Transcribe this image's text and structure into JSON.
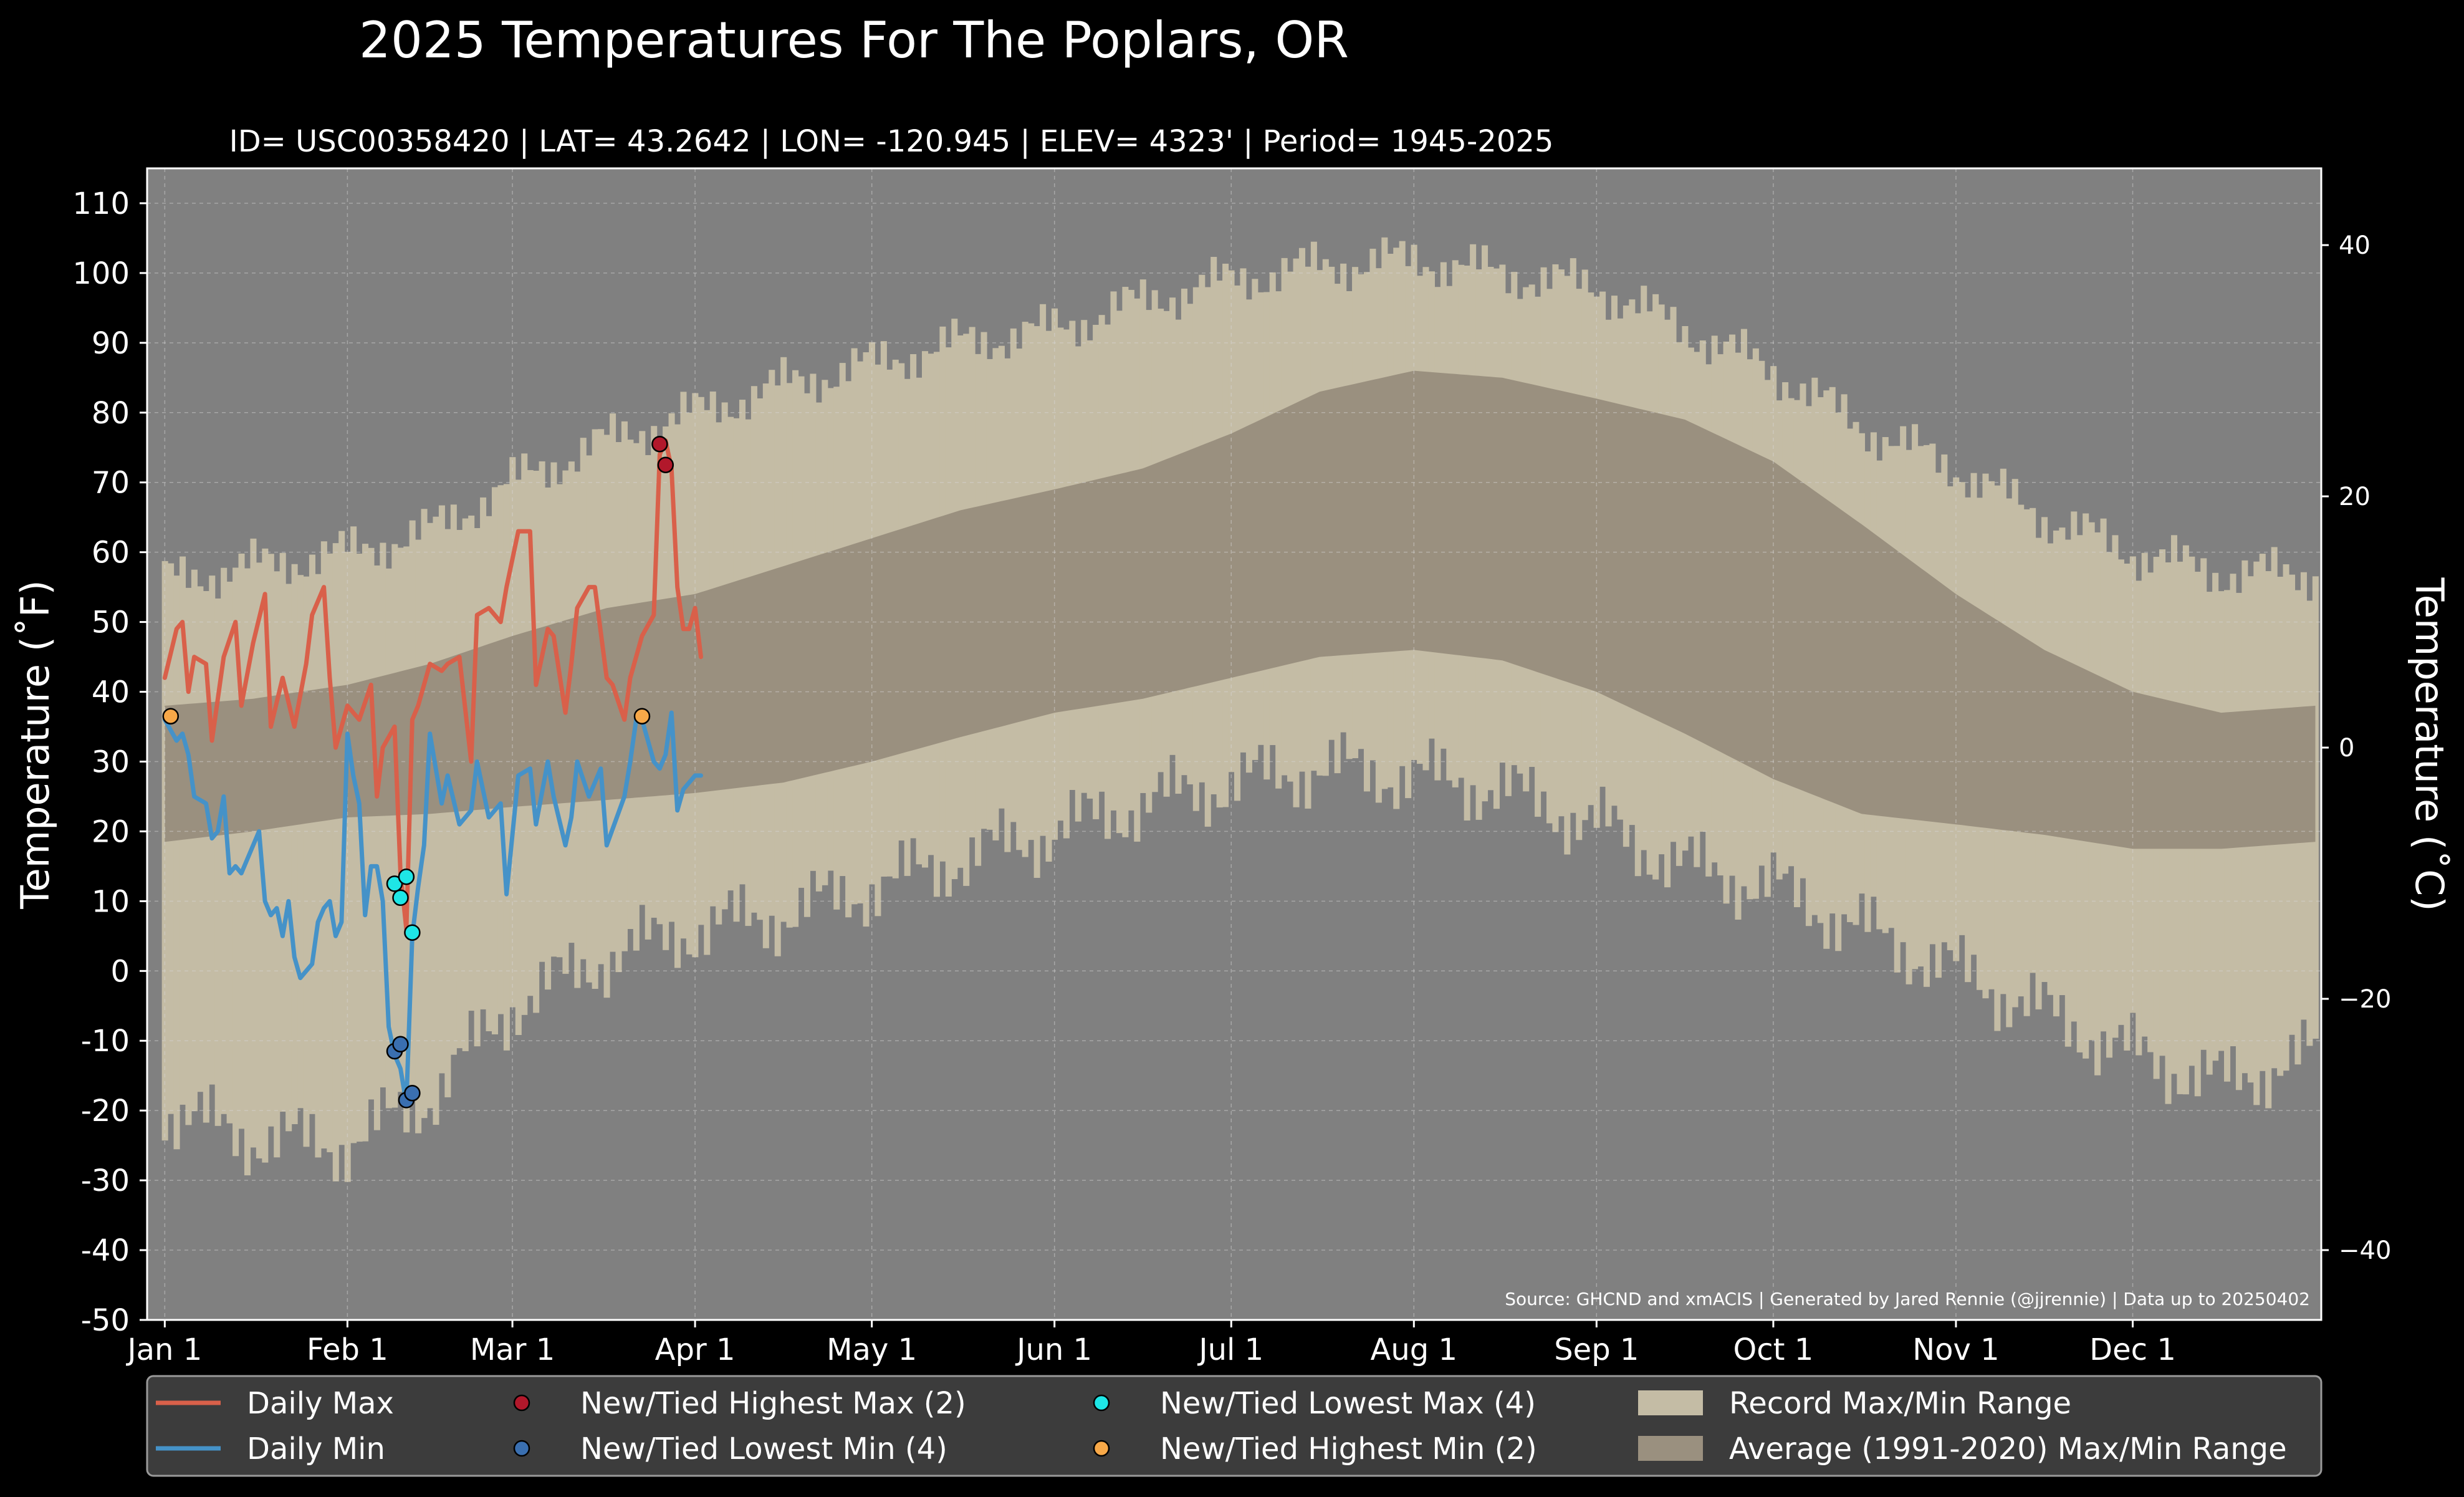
{
  "chart_data": {
    "type": "line",
    "title": "2025 Temperatures For The Poplars, OR",
    "subtitle": "ID= USC00358420 | LAT= 43.2642 | LON= -120.945 | ELEV= 4323' | Period= 1945-2025",
    "ylabel": "Temperature ( $^\\circ$F)",
    "ylabel_display": "Temperature (˚F)",
    "ylabel2": "Temperature (˚C)",
    "ylim": [
      -50,
      115
    ],
    "yticks": [
      -50,
      -40,
      -30,
      -20,
      -10,
      0,
      10,
      20,
      30,
      40,
      50,
      60,
      70,
      80,
      90,
      100,
      110
    ],
    "ylim_c": [
      -45.56,
      46.11
    ],
    "yticks_c": [
      -40,
      -20,
      0,
      20,
      40
    ],
    "xlim": [
      -3,
      366
    ],
    "month_ticks": [
      {
        "label": "Jan 1",
        "day": 0
      },
      {
        "label": "Feb 1",
        "day": 31
      },
      {
        "label": "Mar 1",
        "day": 59
      },
      {
        "label": "Apr 1",
        "day": 90
      },
      {
        "label": "May 1",
        "day": 120
      },
      {
        "label": "Jun 1",
        "day": 151
      },
      {
        "label": "Jul 1",
        "day": 181
      },
      {
        "label": "Aug 1",
        "day": 212
      },
      {
        "label": "Sep 1",
        "day": 243
      },
      {
        "label": "Oct 1",
        "day": 273
      },
      {
        "label": "Nov 1",
        "day": 304
      },
      {
        "label": "Dec 1",
        "day": 334
      }
    ],
    "grid": true,
    "source": "Source: GHCND and xmACIS | Generated by Jared Rennie (@jjrennie) | Data up to 20250402",
    "colors": {
      "background": "#000000",
      "plot_bg": "#808080",
      "record_range": "#c4bca5",
      "normal_range": "#9a907f",
      "daily_max": "#d9604a",
      "daily_min": "#4592c8",
      "highest_max": "#b2182b",
      "lowest_min": "#3a6fb0",
      "lowest_max": "#1ee6e6",
      "highest_min": "#f7a848",
      "legend_bg": "#3c3c3c"
    },
    "record_range": {
      "anchor_days": [
        0,
        15,
        31,
        45,
        59,
        75,
        90,
        105,
        120,
        135,
        151,
        166,
        181,
        196,
        212,
        227,
        243,
        258,
        273,
        288,
        304,
        319,
        334,
        349,
        365
      ],
      "record_max": [
        56,
        58,
        60,
        63,
        70,
        76,
        80,
        84,
        87,
        90,
        92,
        96,
        99,
        101,
        102,
        100,
        98,
        92,
        86,
        78,
        72,
        65,
        60,
        57,
        57
      ],
      "record_min": [
        -20,
        -24,
        -25,
        -18,
        -5,
        2,
        6,
        8,
        12,
        16,
        20,
        24,
        27,
        29,
        28,
        26,
        21,
        15,
        12,
        6,
        0,
        -6,
        -12,
        -16,
        -12
      ]
    },
    "normal_range": {
      "anchor_days": [
        0,
        15,
        31,
        45,
        59,
        75,
        90,
        105,
        120,
        135,
        151,
        166,
        181,
        196,
        212,
        227,
        243,
        258,
        273,
        288,
        304,
        319,
        334,
        349,
        365
      ],
      "normal_max": [
        38,
        39,
        41,
        44,
        48,
        52,
        54,
        58,
        62,
        66,
        69,
        72,
        77,
        83,
        86,
        85,
        82,
        79,
        73,
        64,
        54,
        46,
        40,
        37,
        38
      ],
      "normal_min": [
        18.5,
        20,
        22,
        22.5,
        23.5,
        24.5,
        25.5,
        27,
        30,
        33.5,
        37,
        39,
        42,
        45,
        46,
        44.5,
        40,
        34,
        27.5,
        22.5,
        21,
        19.5,
        17.5,
        17.5,
        18.5
      ]
    },
    "series": [
      {
        "name": "Daily Max",
        "x": [
          0,
          2,
          3,
          4,
          5,
          7,
          8,
          10,
          12,
          13,
          15,
          17,
          18,
          20,
          22,
          24,
          25,
          27,
          28,
          29,
          31,
          33,
          35,
          36,
          37,
          39,
          40,
          41,
          42,
          43,
          45,
          47,
          48,
          50,
          52,
          53,
          55,
          57,
          58,
          60,
          62,
          63,
          65,
          66,
          68,
          69,
          70,
          72,
          73,
          75,
          76,
          78,
          79,
          81,
          83,
          84,
          85,
          86,
          87,
          88,
          89,
          90,
          91
        ],
        "y": [
          42,
          49,
          50,
          40,
          45,
          44,
          33,
          45,
          50,
          38,
          47,
          54,
          35,
          42,
          35,
          44,
          51,
          55,
          42,
          32,
          38,
          36,
          41,
          25,
          32,
          35,
          14,
          6,
          36,
          38,
          44,
          43,
          44,
          45,
          30,
          51,
          52,
          50,
          55,
          63,
          63,
          41,
          49,
          48,
          37,
          44,
          52,
          55,
          55,
          42,
          41,
          36,
          42,
          48,
          51,
          74,
          76,
          72,
          55,
          49,
          49,
          52,
          45
        ]
      },
      {
        "name": "Daily Min",
        "x": [
          0,
          2,
          3,
          4,
          5,
          7,
          8,
          9,
          10,
          11,
          12,
          13,
          15,
          16,
          17,
          18,
          19,
          20,
          21,
          22,
          23,
          25,
          26,
          27,
          28,
          29,
          30,
          31,
          32,
          33,
          34,
          35,
          36,
          37,
          38,
          39,
          40,
          41,
          42,
          43,
          44,
          45,
          47,
          48,
          50,
          52,
          53,
          55,
          57,
          58,
          60,
          62,
          63,
          65,
          66,
          68,
          69,
          70,
          72,
          74,
          75,
          78,
          79,
          80,
          81,
          83,
          84,
          85,
          86,
          87,
          88,
          89,
          90,
          91
        ],
        "y": [
          36,
          33,
          34,
          31,
          25,
          24,
          19,
          20,
          25,
          14,
          15,
          14,
          18,
          20,
          10,
          8,
          9,
          5,
          10,
          2,
          -1,
          1,
          7,
          9,
          10,
          5,
          7,
          34,
          28,
          24,
          8,
          15,
          15,
          10,
          -8,
          -12,
          -14,
          -19,
          5,
          12,
          18,
          34,
          24,
          28,
          21,
          23,
          30,
          22,
          24,
          11,
          28,
          29,
          21,
          30,
          25,
          18,
          22,
          30,
          25,
          29,
          18,
          25,
          30,
          36,
          36,
          30,
          29,
          31,
          37,
          23,
          26,
          27,
          28,
          28
        ]
      }
    ],
    "points": [
      {
        "name": "New/Tied Highest Max (2)",
        "x": [
          84,
          85
        ],
        "y": [
          75.5,
          72.5
        ]
      },
      {
        "name": "New/Tied Lowest Min (4)",
        "x": [
          39,
          40,
          41,
          42
        ],
        "y": [
          -11.5,
          -10.5,
          -18.5,
          -17.5
        ]
      },
      {
        "name": "New/Tied Lowest Max (4)",
        "x": [
          39,
          40,
          41,
          42
        ],
        "y": [
          12.5,
          10.5,
          13.5,
          5.5
        ]
      },
      {
        "name": "New/Tied Highest Min (2)",
        "x": [
          1,
          81
        ],
        "y": [
          36.5,
          36.5
        ]
      }
    ],
    "legend": {
      "placement": "bottom",
      "items": [
        {
          "label": "Daily Max",
          "kind": "line",
          "color": "#d9604a"
        },
        {
          "label": "New/Tied Highest Max (2)",
          "kind": "marker",
          "color": "#b2182b"
        },
        {
          "label": "New/Tied Lowest Max (4)",
          "kind": "marker",
          "color": "#1ee6e6"
        },
        {
          "label": "Record Max/Min Range",
          "kind": "patch",
          "color": "#c4bca5"
        },
        {
          "label": "Daily Min",
          "kind": "line",
          "color": "#4592c8"
        },
        {
          "label": "New/Tied Lowest Min (4)",
          "kind": "marker",
          "color": "#3a6fb0"
        },
        {
          "label": "New/Tied Highest Min (2)",
          "kind": "marker",
          "color": "#f7a848"
        },
        {
          "label": "Average (1991-2020) Max/Min Range",
          "kind": "patch",
          "color": "#9a907f"
        }
      ]
    }
  }
}
